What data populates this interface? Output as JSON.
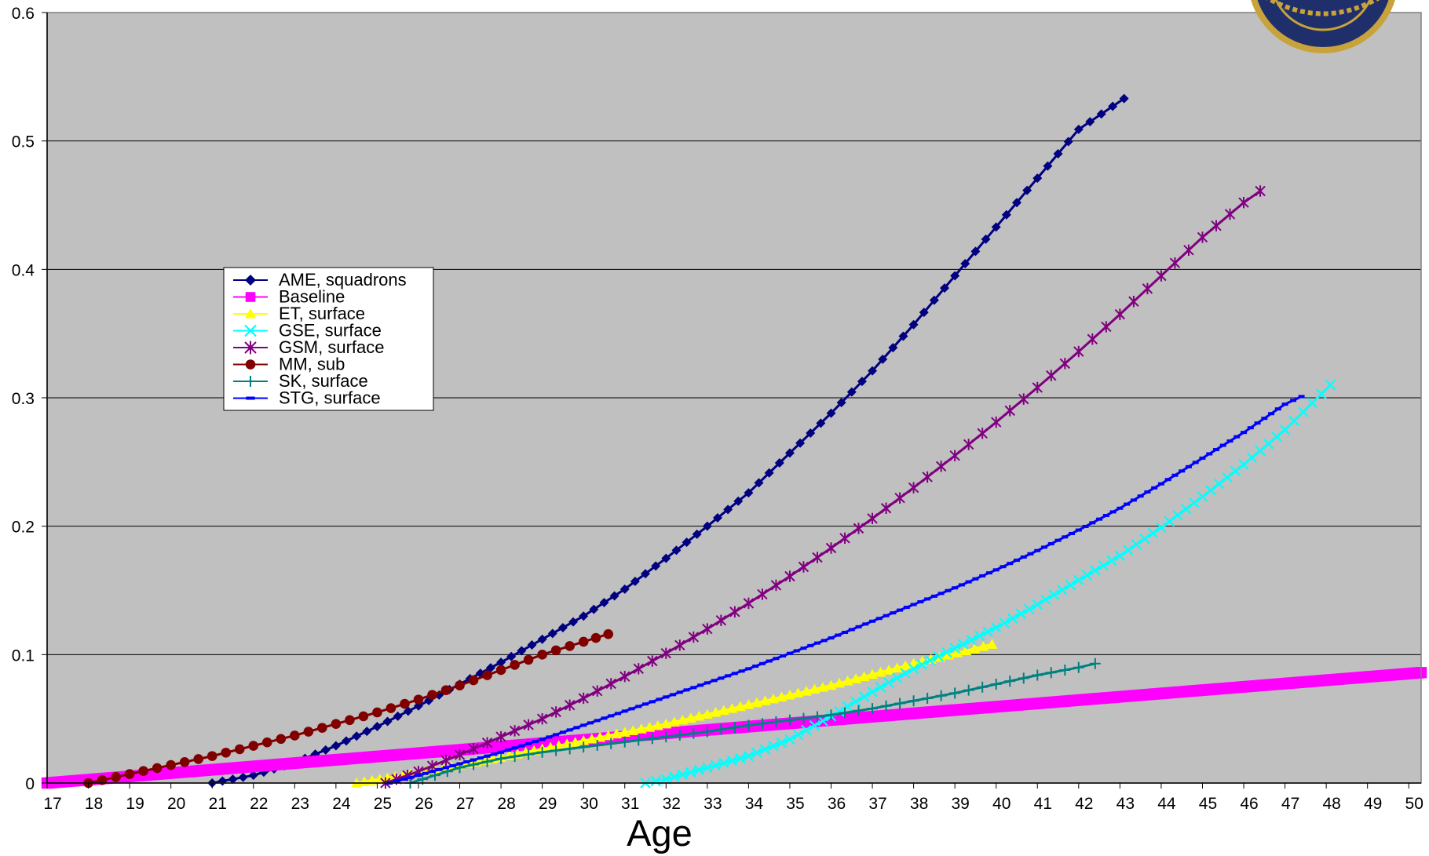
{
  "chart_data": {
    "type": "line",
    "title": "",
    "xlabel": "Age",
    "ylabel": "",
    "xlim": [
      17,
      50.3
    ],
    "ylim": [
      0,
      0.6
    ],
    "x_ticks": [
      "17",
      "18",
      "19",
      "20",
      "21",
      "22",
      "23",
      "24",
      "25",
      "26",
      "27",
      "28",
      "29",
      "30",
      "31",
      "32",
      "33",
      "34",
      "35",
      "36",
      "37",
      "38",
      "39",
      "40",
      "41",
      "42",
      "43",
      "44",
      "45",
      "46",
      "47",
      "48",
      "49",
      "50"
    ],
    "y_ticks": [
      "0",
      "0.1",
      "0.2",
      "0.3",
      "0.4",
      "0.5",
      "0.6"
    ],
    "grid": "horizontal",
    "plot_background": "#c0c0c0",
    "legend_position": "left, middle",
    "series": [
      {
        "name": "AME, squadrons",
        "color": "#000080",
        "marker": "diamond",
        "x": [
          21,
          22,
          23,
          24,
          25,
          26,
          27,
          28,
          29,
          30,
          31,
          32,
          33,
          34,
          35,
          36,
          37,
          38,
          39,
          40,
          41,
          42,
          43.1
        ],
        "y": [
          0,
          0.006,
          0.016,
          0.029,
          0.044,
          0.06,
          0.077,
          0.094,
          0.112,
          0.13,
          0.151,
          0.175,
          0.2,
          0.226,
          0.257,
          0.288,
          0.321,
          0.357,
          0.395,
          0.433,
          0.471,
          0.509,
          0.533
        ]
      },
      {
        "name": "Baseline",
        "color": "#ff00ff",
        "marker": "square",
        "x": [
          17,
          50.3
        ],
        "y": [
          0,
          0.086
        ]
      },
      {
        "name": "ET, surface",
        "color": "#ffff00",
        "marker": "triangle",
        "x": [
          24.5,
          26,
          28,
          30,
          32,
          34,
          36,
          38,
          39.9
        ],
        "y": [
          0,
          0.008,
          0.02,
          0.033,
          0.046,
          0.061,
          0.076,
          0.093,
          0.108
        ]
      },
      {
        "name": "GSE, surface",
        "color": "#00ffff",
        "marker": "x",
        "x": [
          31.5,
          32,
          33,
          34,
          35,
          36,
          37,
          38,
          39,
          40,
          41,
          42,
          43,
          44,
          45,
          46,
          47,
          48.1
        ],
        "y": [
          0,
          0.003,
          0.012,
          0.021,
          0.034,
          0.052,
          0.071,
          0.089,
          0.105,
          0.121,
          0.139,
          0.158,
          0.177,
          0.199,
          0.223,
          0.248,
          0.275,
          0.31
        ]
      },
      {
        "name": "GSM, surface",
        "color": "#800080",
        "marker": "star",
        "x": [
          25.2,
          26,
          27,
          28,
          29,
          30,
          31,
          32,
          33,
          34,
          35,
          36,
          37,
          38,
          39,
          40,
          41,
          42,
          43,
          44,
          45,
          46,
          46.4
        ],
        "y": [
          0,
          0.009,
          0.022,
          0.036,
          0.05,
          0.066,
          0.083,
          0.101,
          0.12,
          0.14,
          0.161,
          0.183,
          0.206,
          0.23,
          0.255,
          0.281,
          0.308,
          0.336,
          0.365,
          0.395,
          0.425,
          0.452,
          0.461
        ]
      },
      {
        "name": "MM, sub",
        "color": "#800000",
        "marker": "circle",
        "x": [
          18,
          19,
          20,
          21,
          22,
          23,
          24,
          25,
          26,
          27,
          28,
          29,
          30,
          30.6
        ],
        "y": [
          0,
          0.007,
          0.014,
          0.021,
          0.029,
          0.037,
          0.046,
          0.055,
          0.065,
          0.076,
          0.088,
          0.1,
          0.11,
          0.116
        ]
      },
      {
        "name": "SK, surface",
        "color": "#008080",
        "marker": "plus",
        "x": [
          25.8,
          27,
          28,
          29,
          30,
          31,
          32,
          33,
          34,
          35,
          36,
          37,
          38,
          39,
          40,
          41,
          42,
          42.4
        ],
        "y": [
          0,
          0.012,
          0.019,
          0.024,
          0.028,
          0.032,
          0.036,
          0.04,
          0.045,
          0.049,
          0.053,
          0.058,
          0.064,
          0.07,
          0.077,
          0.084,
          0.09,
          0.093
        ]
      },
      {
        "name": "STG, surface",
        "color": "#0000ff",
        "marker": "dash",
        "x": [
          25.3,
          26,
          27,
          28,
          29,
          30,
          31,
          32,
          33,
          34,
          35,
          36,
          37,
          38,
          39,
          40,
          41,
          42,
          43,
          44,
          45,
          46,
          47,
          47.4
        ],
        "y": [
          0,
          0.006,
          0.015,
          0.024,
          0.034,
          0.045,
          0.056,
          0.067,
          0.078,
          0.089,
          0.101,
          0.113,
          0.126,
          0.139,
          0.152,
          0.166,
          0.181,
          0.197,
          0.214,
          0.233,
          0.253,
          0.273,
          0.295,
          0.301
        ]
      }
    ]
  }
}
